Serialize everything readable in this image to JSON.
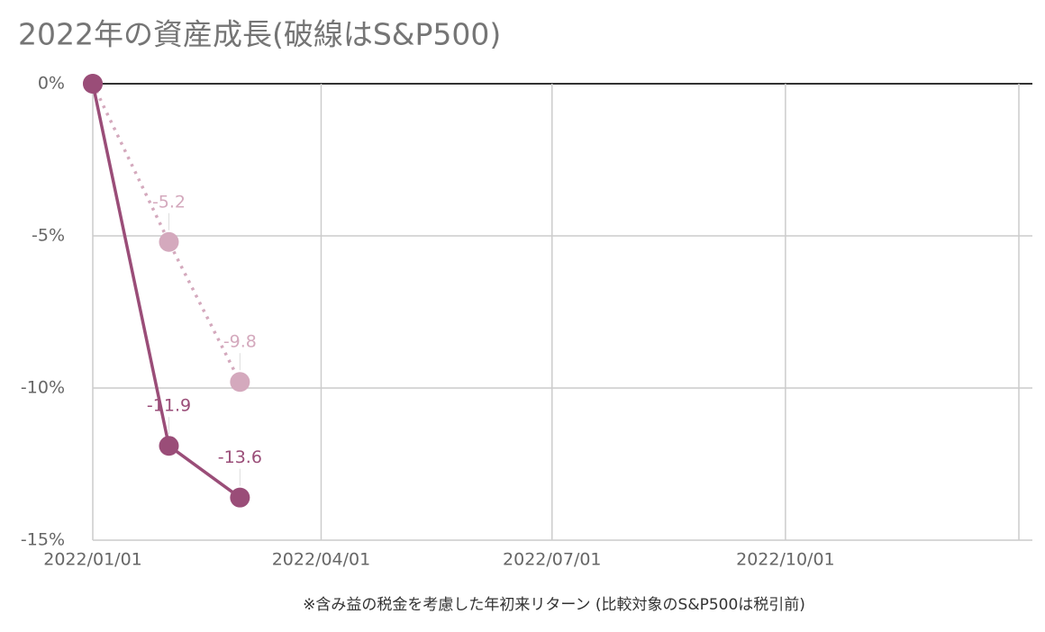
{
  "chart_data": {
    "type": "line",
    "title": "2022年の資産成長(破線はS&P500)",
    "note": "※含み益の税金を考慮した年初来リターン (比較対象のS&P500は税引前)",
    "x": [
      "2022/01/01",
      "2022/01/31",
      "2022/02/28"
    ],
    "series": [
      {
        "color": "#d4a9bd",
        "dashed": true,
        "values": [
          0,
          -5.2,
          -9.8
        ],
        "value_labels": [
          null,
          "-5.2",
          "-9.8"
        ]
      },
      {
        "color": "#9a4d78",
        "dashed": false,
        "values": [
          0,
          -11.9,
          -13.6
        ],
        "value_labels": [
          null,
          "-11.9",
          "-13.6"
        ]
      }
    ],
    "xlim": [
      "2022/01/01",
      "2023/01/01"
    ],
    "xticks": [
      "2022/01/01",
      "2022/04/01",
      "2022/07/01",
      "2022/10/01"
    ],
    "ylim": [
      -15,
      0
    ],
    "yticks": [
      {
        "value": 0,
        "label": "0%"
      },
      {
        "value": -5,
        "label": "-5%"
      },
      {
        "value": -10,
        "label": "-10%"
      },
      {
        "value": -15,
        "label": "-15%"
      }
    ],
    "grid": true
  }
}
